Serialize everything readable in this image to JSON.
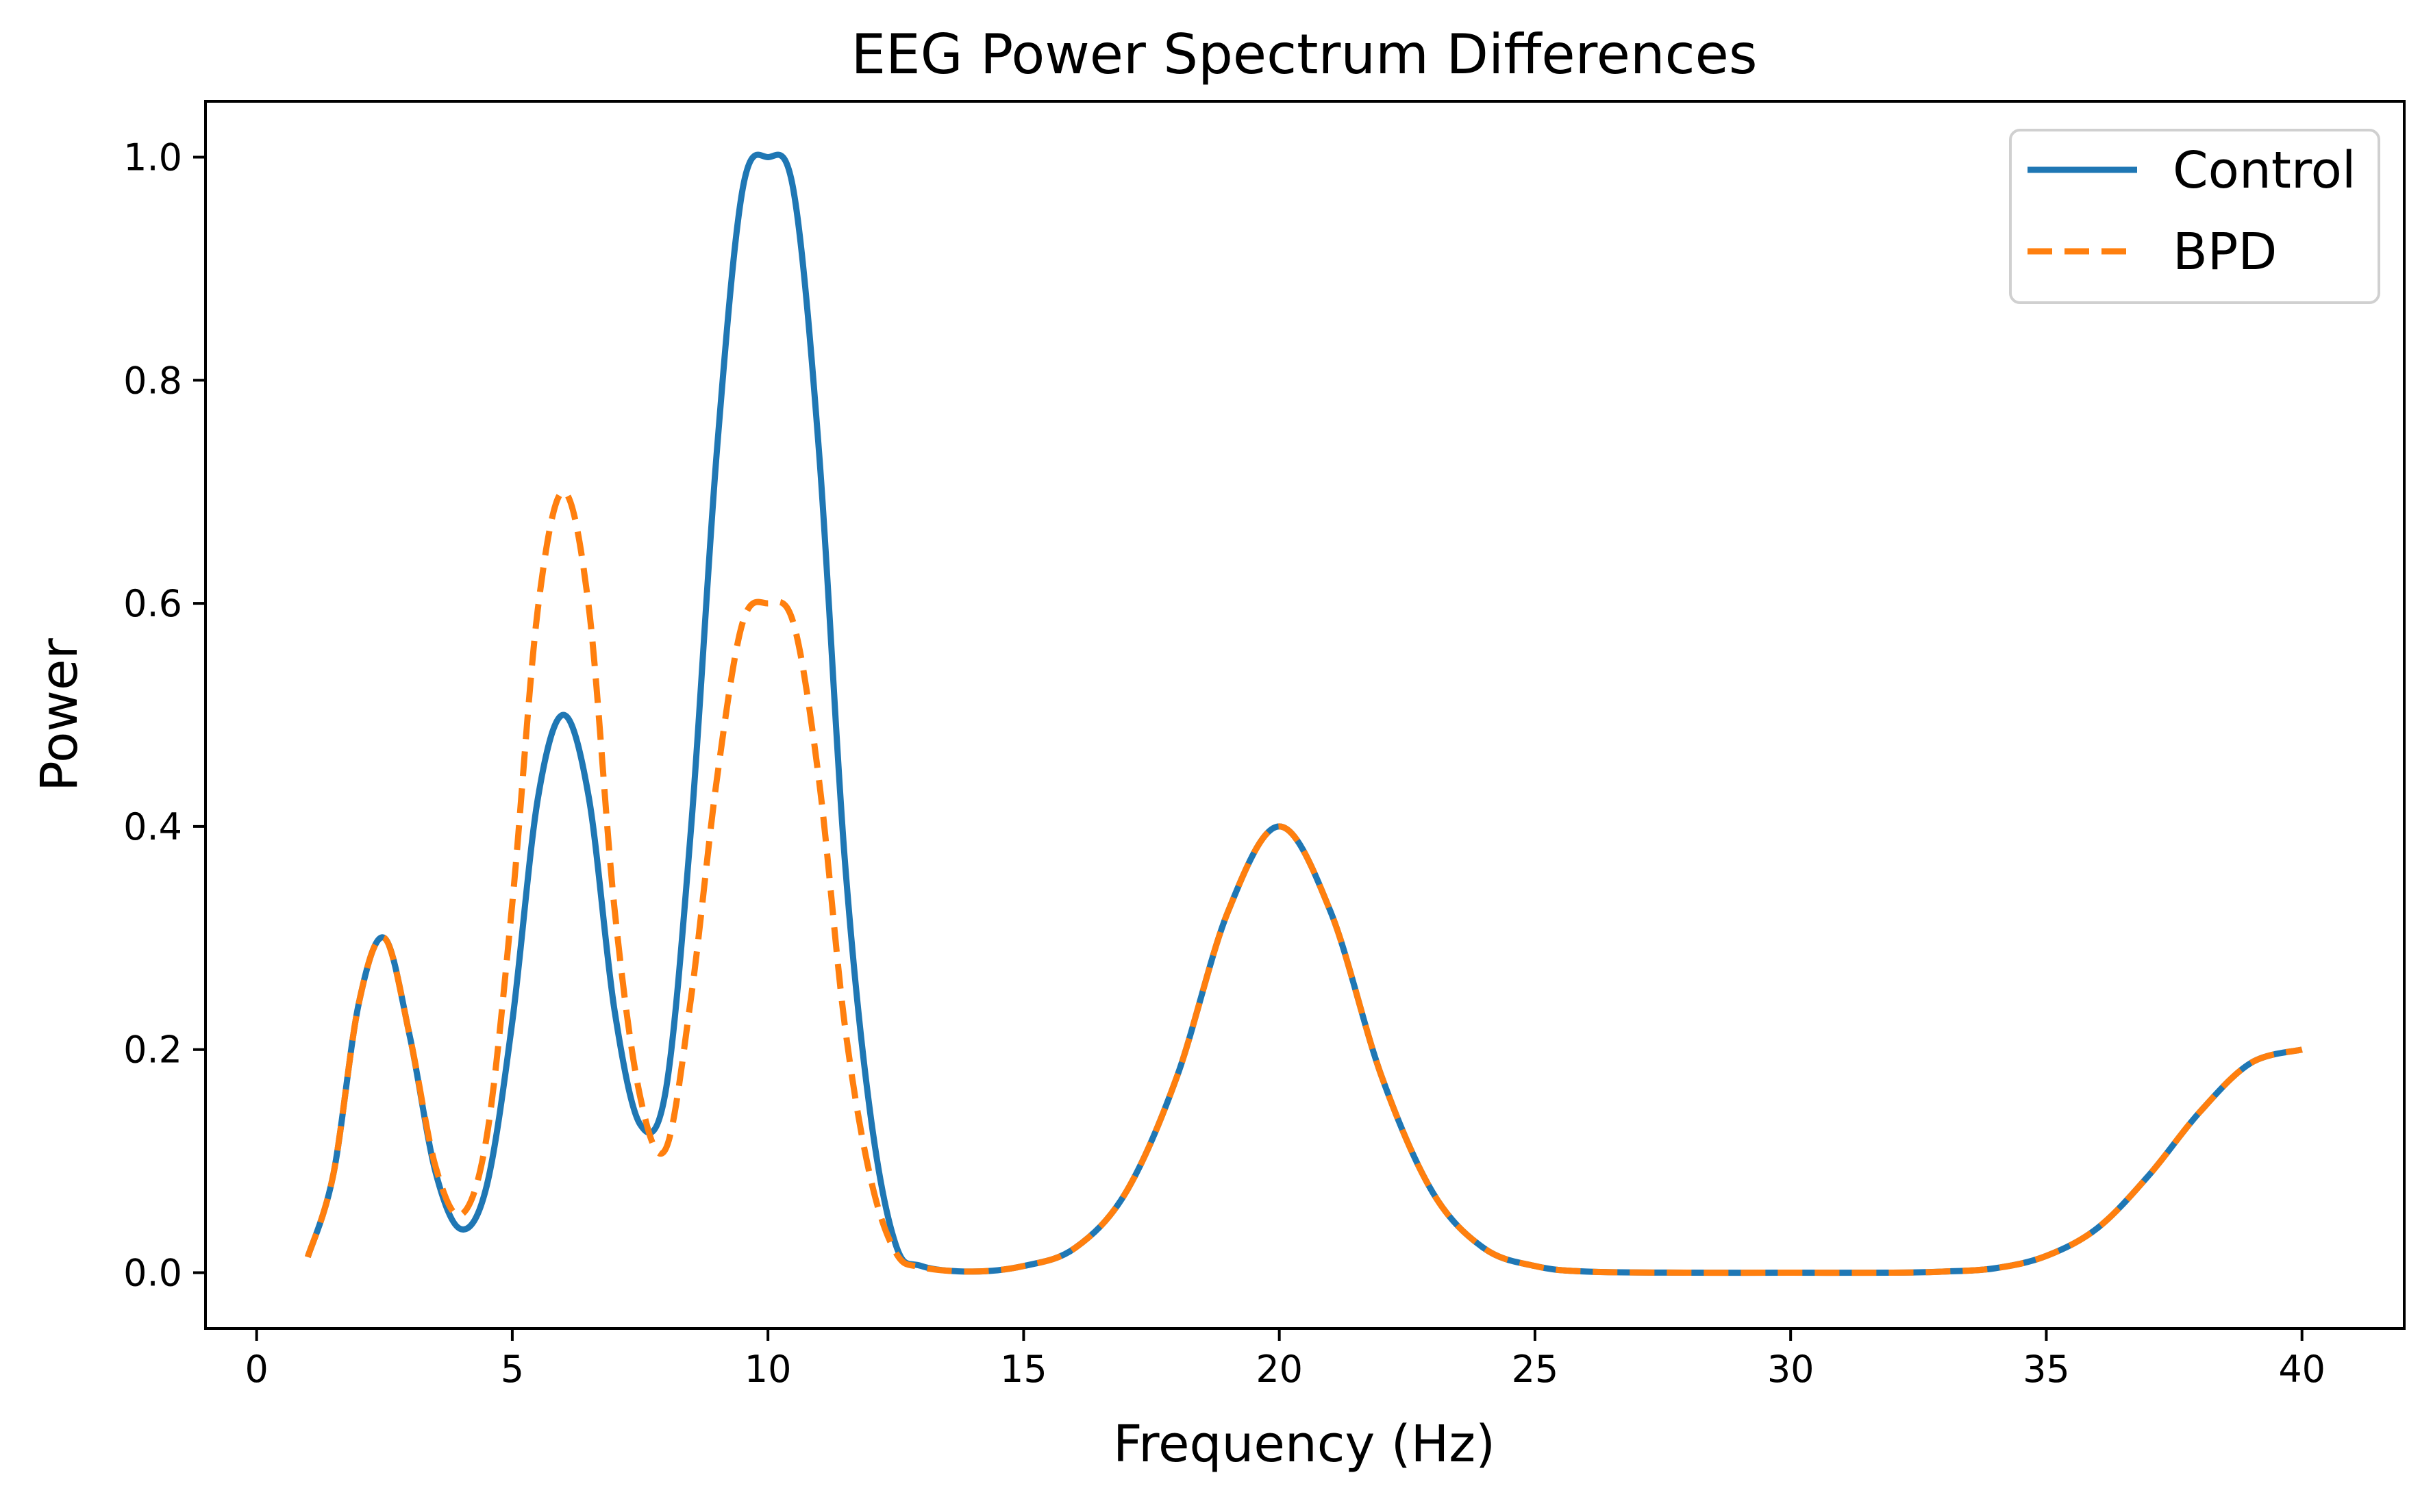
{
  "chart_data": {
    "type": "line",
    "title": "EEG Power Spectrum Differences",
    "xlabel": "Frequency (Hz)",
    "ylabel": "Power",
    "xlim": [
      -1,
      42
    ],
    "ylim": [
      -0.05,
      1.05
    ],
    "xticks": [
      0,
      5,
      10,
      15,
      20,
      25,
      30,
      35,
      40
    ],
    "yticks": [
      0.0,
      0.2,
      0.4,
      0.6,
      0.8,
      1.0
    ],
    "grid": false,
    "legend_position": "top-right",
    "colors": {
      "control": "#1f77b4",
      "bpd": "#ff7f0e"
    },
    "series": [
      {
        "name": "Control",
        "style": "solid",
        "color": "#1f77b4",
        "x": [
          1,
          1.5,
          2,
          2.5,
          3,
          3.5,
          4,
          4.5,
          5,
          5.5,
          6,
          6.5,
          7,
          7.5,
          8,
          8.5,
          9,
          9.5,
          10,
          10.5,
          11,
          11.5,
          12,
          12.5,
          13,
          14,
          15,
          16,
          17,
          18,
          19,
          20,
          21,
          22,
          23,
          24,
          25,
          26,
          28,
          30,
          32,
          33,
          34,
          35,
          36,
          37,
          38,
          39,
          40
        ],
        "values": [
          0.014,
          0.088,
          0.242,
          0.3,
          0.211,
          0.09,
          0.039,
          0.078,
          0.225,
          0.425,
          0.5,
          0.425,
          0.235,
          0.133,
          0.163,
          0.401,
          0.736,
          0.97,
          1.0,
          0.97,
          0.735,
          0.372,
          0.143,
          0.025,
          0.006,
          0.001,
          0.006,
          0.022,
          0.072,
          0.176,
          0.324,
          0.4,
          0.324,
          0.176,
          0.072,
          0.022,
          0.006,
          0.001,
          0.0,
          0.0,
          0.0,
          0.001,
          0.004,
          0.015,
          0.04,
          0.087,
          0.144,
          0.188,
          0.2
        ]
      },
      {
        "name": "BPD",
        "style": "dashed",
        "color": "#ff7f0e",
        "x": [
          1,
          1.5,
          2,
          2.5,
          3,
          3.5,
          4,
          4.5,
          5,
          5.5,
          6,
          6.5,
          7,
          7.5,
          8,
          8.5,
          9,
          9.5,
          10,
          10.5,
          11,
          11.5,
          12,
          12.5,
          13,
          14,
          15,
          16,
          17,
          18,
          19,
          20,
          21,
          22,
          23,
          24,
          25,
          26,
          28,
          30,
          32,
          33,
          34,
          35,
          36,
          37,
          38,
          39,
          40
        ],
        "values": [
          0.014,
          0.088,
          0.242,
          0.3,
          0.211,
          0.095,
          0.052,
          0.122,
          0.331,
          0.595,
          0.7,
          0.595,
          0.326,
          0.158,
          0.111,
          0.248,
          0.442,
          0.582,
          0.6,
          0.582,
          0.441,
          0.223,
          0.086,
          0.018,
          0.005,
          0.001,
          0.006,
          0.022,
          0.072,
          0.176,
          0.324,
          0.4,
          0.324,
          0.176,
          0.072,
          0.022,
          0.006,
          0.001,
          0.0,
          0.0,
          0.0,
          0.001,
          0.004,
          0.015,
          0.04,
          0.087,
          0.144,
          0.188,
          0.2
        ]
      }
    ]
  }
}
